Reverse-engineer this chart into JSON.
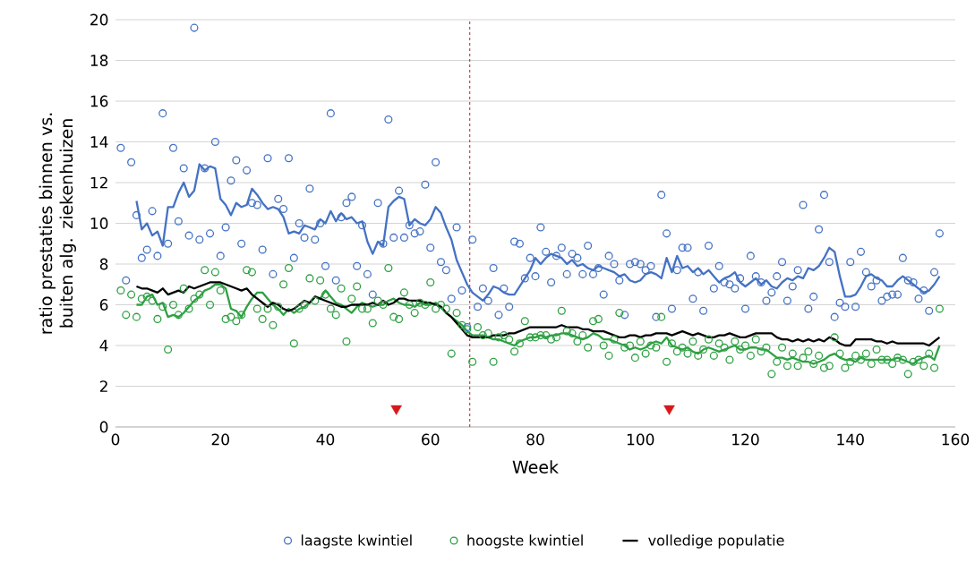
{
  "chart_data": {
    "type": "scatter",
    "xlabel": "Week",
    "ylabel": "ratio prestaties binnen vs. buiten alg. ziekenhuizen",
    "x": [
      1,
      2,
      3,
      4,
      5,
      6,
      7,
      8,
      9,
      10,
      11,
      12,
      13,
      14,
      15,
      16,
      17,
      18,
      19,
      20,
      21,
      22,
      23,
      24,
      25,
      26,
      27,
      28,
      29,
      30,
      31,
      32,
      33,
      34,
      35,
      36,
      37,
      38,
      39,
      40,
      41,
      42,
      43,
      44,
      45,
      46,
      47,
      48,
      49,
      50,
      51,
      52,
      53,
      54,
      55,
      56,
      57,
      58,
      59,
      60,
      61,
      62,
      63,
      64,
      65,
      66,
      67,
      68,
      69,
      70,
      71,
      72,
      73,
      74,
      75,
      76,
      77,
      78,
      79,
      80,
      81,
      82,
      83,
      84,
      85,
      86,
      87,
      88,
      89,
      90,
      91,
      92,
      93,
      94,
      95,
      96,
      97,
      98,
      99,
      100,
      101,
      102,
      103,
      104,
      105,
      106,
      107,
      108,
      109,
      110,
      111,
      112,
      113,
      114,
      115,
      116,
      117,
      118,
      119,
      120,
      121,
      122,
      123,
      124,
      125,
      126,
      127,
      128,
      129,
      130,
      131,
      132,
      133,
      134,
      135,
      136,
      137,
      138,
      139,
      140,
      141,
      142,
      143,
      144,
      145,
      146,
      147,
      148,
      149,
      150,
      151,
      152,
      153,
      154,
      155,
      156,
      157
    ],
    "xlim": [
      0,
      160
    ],
    "xticks": [
      0,
      20,
      40,
      60,
      80,
      100,
      120,
      140,
      160
    ],
    "ylim": [
      0,
      20
    ],
    "yticks": [
      0,
      2,
      4,
      6,
      8,
      10,
      12,
      14,
      16,
      18,
      20
    ],
    "grid": "y",
    "legend": "bottom",
    "ref_lines": [
      {
        "axis": "x",
        "value": 67.5,
        "color": "#c00000",
        "line_style": "dashed"
      }
    ],
    "series": [
      {
        "name": "laagste kwintiel",
        "marker": "circle",
        "color": "#4472c4",
        "values": [
          13.7,
          7.2,
          13.0,
          10.4,
          8.3,
          8.7,
          10.6,
          8.4,
          15.4,
          9.0,
          13.7,
          10.1,
          12.7,
          9.4,
          19.6,
          9.2,
          12.7,
          9.5,
          14.0,
          8.4,
          9.8,
          12.1,
          13.1,
          9.0,
          12.6,
          11.0,
          10.9,
          8.7,
          13.2,
          7.5,
          11.2,
          10.7,
          13.2,
          8.3,
          10.0,
          9.3,
          11.7,
          9.2,
          10.0,
          7.9,
          15.4,
          7.2,
          10.3,
          11.0,
          11.3,
          7.9,
          9.9,
          7.5,
          6.5,
          11.0,
          9.0,
          15.1,
          9.3,
          11.6,
          9.3,
          9.9,
          9.5,
          9.6,
          11.9,
          8.8,
          13.0,
          8.1,
          7.7,
          6.3,
          9.8,
          6.7,
          4.9,
          9.2,
          5.9,
          6.8,
          6.2,
          7.8,
          5.5,
          6.8,
          5.9,
          9.1,
          9.0,
          7.3,
          8.3,
          7.4,
          9.8,
          8.6,
          7.1,
          8.4,
          8.8,
          7.5,
          8.5,
          8.3,
          7.5,
          8.9,
          7.5,
          7.8,
          6.5,
          8.4,
          8.0,
          7.2,
          5.5,
          8.0,
          8.1,
          8.0,
          7.7,
          7.9,
          5.4,
          11.4,
          9.5,
          5.8,
          7.7,
          8.8,
          8.8,
          6.3,
          7.6,
          5.7,
          8.9,
          6.8,
          7.9,
          7.1,
          7.0,
          6.8,
          7.3,
          5.8,
          8.4,
          7.4,
          7.1,
          6.2,
          6.6,
          7.4,
          8.1,
          6.2,
          6.9,
          7.7,
          10.9,
          5.8,
          6.4,
          9.7,
          11.4,
          8.1,
          5.4,
          6.1,
          5.9,
          8.1,
          5.9,
          8.6,
          7.6,
          6.9,
          7.2,
          6.2,
          6.4,
          6.5,
          6.5,
          8.3,
          7.2,
          7.1,
          6.3,
          6.7,
          5.7,
          7.6,
          9.5
        ]
      },
      {
        "name": "hoogste kwintiel",
        "marker": "circle",
        "color": "#2ea043",
        "values": [
          6.7,
          5.5,
          6.5,
          5.4,
          6.3,
          6.4,
          6.2,
          5.3,
          5.9,
          3.8,
          6.0,
          5.5,
          6.8,
          5.8,
          6.3,
          6.5,
          7.7,
          6.0,
          7.6,
          6.7,
          5.3,
          5.4,
          5.2,
          5.5,
          7.7,
          7.6,
          5.8,
          5.3,
          5.8,
          5.0,
          5.9,
          7.0,
          7.8,
          4.1,
          5.8,
          6.0,
          7.3,
          6.2,
          7.2,
          6.5,
          5.8,
          5.5,
          6.8,
          4.2,
          6.3,
          6.9,
          5.8,
          5.8,
          5.1,
          6.2,
          6.0,
          7.8,
          5.4,
          5.3,
          6.6,
          6.0,
          5.6,
          6.1,
          6.0,
          7.1,
          5.8,
          6.0,
          5.8,
          3.6,
          5.6,
          5.0,
          4.8,
          3.2,
          4.9,
          4.5,
          4.6,
          3.2,
          4.4,
          4.5,
          4.3,
          3.7,
          4.1,
          5.2,
          4.4,
          4.4,
          4.5,
          4.5,
          4.3,
          4.4,
          5.7,
          4.7,
          4.6,
          4.2,
          4.5,
          3.9,
          5.2,
          5.3,
          4.0,
          3.5,
          4.3,
          5.6,
          3.9,
          4.0,
          3.4,
          4.2,
          3.6,
          4.0,
          3.9,
          5.4,
          3.2,
          4.1,
          3.7,
          3.9,
          3.6,
          4.2,
          3.5,
          3.8,
          4.3,
          3.5,
          4.1,
          3.9,
          3.3,
          4.2,
          3.8,
          4.0,
          3.5,
          4.3,
          3.7,
          3.9,
          2.6,
          3.2,
          3.9,
          3.0,
          3.6,
          3.0,
          3.4,
          3.7,
          3.1,
          3.5,
          2.9,
          3.0,
          4.4,
          3.6,
          2.9,
          3.2,
          3.5,
          3.3,
          3.6,
          3.1,
          3.8,
          3.3,
          3.3,
          3.1,
          3.4,
          3.3,
          2.6,
          3.2,
          3.3,
          3.0,
          3.6,
          2.9,
          5.8
        ]
      },
      {
        "type": "line",
        "color": "#4472c4",
        "values": [
          null,
          null,
          null,
          11.1,
          9.7,
          10.0,
          9.4,
          9.6,
          8.9,
          10.8,
          10.8,
          11.5,
          12.0,
          11.3,
          11.6,
          12.9,
          12.6,
          12.8,
          12.7,
          11.2,
          10.9,
          10.4,
          11.0,
          10.8,
          10.9,
          11.7,
          11.4,
          11.0,
          10.7,
          10.8,
          10.7,
          10.3,
          9.5,
          9.6,
          9.5,
          9.9,
          9.8,
          9.7,
          10.2,
          10.0,
          10.6,
          10.1,
          10.5,
          10.2,
          10.3,
          10.0,
          10.1,
          9.1,
          8.5,
          9.1,
          8.9,
          10.8,
          11.1,
          11.3,
          11.2,
          9.9,
          10.2,
          10.0,
          9.9,
          10.2,
          10.8,
          10.5,
          9.8,
          9.2,
          8.2,
          7.6,
          7.0,
          6.6,
          6.4,
          6.2,
          6.5,
          6.9,
          6.8,
          6.6,
          6.5,
          6.5,
          6.9,
          7.3,
          7.7,
          8.3,
          8.0,
          8.3,
          8.5,
          8.4,
          8.3,
          8.0,
          8.2,
          7.9,
          8.0,
          7.8,
          7.7,
          7.9,
          7.8,
          7.7,
          7.6,
          7.4,
          7.5,
          7.2,
          7.1,
          7.2,
          7.5,
          7.6,
          7.5,
          7.3,
          8.3,
          7.6,
          8.4,
          7.8,
          7.9,
          7.6,
          7.8,
          7.5,
          7.7,
          7.4,
          7.1,
          7.3,
          7.4,
          7.6,
          7.1,
          6.9,
          7.1,
          7.3,
          7.0,
          7.2,
          6.9,
          6.8,
          7.1,
          7.3,
          7.2,
          7.4,
          7.3,
          7.8,
          7.7,
          7.9,
          8.3,
          8.8,
          8.6,
          7.4,
          6.4,
          6.4,
          6.5,
          6.9,
          7.4,
          7.5,
          7.3,
          7.2,
          6.9,
          6.9,
          7.2,
          7.4,
          7.2,
          7.0,
          6.8,
          6.6,
          6.7,
          7.0,
          7.4
        ]
      },
      {
        "type": "line",
        "color": "#2ea043",
        "values": [
          null,
          null,
          null,
          6.0,
          6.0,
          6.4,
          6.5,
          6.0,
          6.1,
          5.4,
          5.5,
          5.4,
          5.6,
          5.9,
          6.2,
          6.4,
          6.7,
          6.8,
          7.0,
          7.0,
          6.8,
          5.8,
          5.7,
          5.4,
          5.9,
          6.3,
          6.6,
          6.6,
          6.3,
          6.0,
          5.8,
          5.5,
          5.8,
          5.6,
          5.8,
          5.9,
          6.1,
          6.4,
          6.3,
          6.7,
          6.4,
          6.1,
          6.0,
          5.8,
          5.6,
          5.9,
          6.1,
          6.0,
          5.9,
          6.0,
          6.0,
          6.2,
          6.3,
          6.1,
          6.0,
          6.0,
          5.9,
          6.1,
          6.0,
          6.0,
          6.1,
          5.9,
          5.6,
          5.4,
          5.2,
          5.0,
          4.7,
          4.5,
          4.5,
          4.5,
          4.4,
          4.3,
          4.3,
          4.2,
          4.1,
          4.0,
          4.2,
          4.3,
          4.4,
          4.4,
          4.5,
          4.4,
          4.5,
          4.5,
          4.6,
          4.6,
          4.5,
          4.4,
          4.3,
          4.4,
          4.6,
          4.5,
          4.3,
          4.3,
          4.2,
          4.1,
          4.0,
          3.8,
          3.9,
          3.8,
          3.9,
          4.1,
          4.2,
          4.1,
          4.4,
          4.0,
          3.9,
          3.8,
          3.9,
          3.7,
          3.6,
          3.8,
          3.9,
          3.8,
          3.7,
          3.8,
          3.9,
          4.0,
          3.8,
          3.8,
          3.9,
          3.9,
          3.8,
          3.8,
          3.6,
          3.4,
          3.4,
          3.3,
          3.4,
          3.3,
          3.2,
          3.2,
          3.1,
          3.2,
          3.3,
          3.5,
          3.6,
          3.4,
          3.3,
          3.3,
          3.2,
          3.4,
          3.3,
          3.3,
          3.3,
          3.3,
          3.3,
          3.3,
          3.4,
          3.3,
          3.2,
          3.1,
          3.3,
          3.4,
          3.5,
          3.3,
          4.0
        ]
      },
      {
        "name": "volledige populatie",
        "type": "line",
        "color": "#000000",
        "values": [
          null,
          null,
          null,
          6.9,
          6.8,
          6.8,
          6.7,
          6.6,
          6.8,
          6.5,
          6.6,
          6.7,
          6.6,
          6.9,
          6.8,
          6.9,
          7.0,
          7.1,
          7.1,
          7.1,
          7.0,
          6.9,
          6.8,
          6.7,
          6.8,
          6.5,
          6.3,
          6.1,
          5.9,
          6.1,
          6.0,
          5.8,
          5.7,
          5.8,
          6.0,
          6.2,
          6.1,
          6.4,
          6.3,
          6.2,
          6.1,
          6.0,
          5.9,
          5.9,
          6.0,
          6.0,
          6.0,
          6.0,
          6.1,
          6.0,
          6.2,
          6.0,
          6.1,
          6.3,
          6.3,
          6.2,
          6.2,
          6.2,
          6.1,
          6.1,
          6.0,
          5.9,
          5.6,
          5.4,
          5.1,
          4.8,
          4.5,
          4.4,
          4.4,
          4.4,
          4.4,
          4.5,
          4.5,
          4.5,
          4.6,
          4.6,
          4.7,
          4.8,
          4.9,
          4.9,
          4.9,
          4.9,
          4.9,
          4.9,
          5.0,
          4.9,
          4.9,
          4.9,
          4.8,
          4.8,
          4.7,
          4.7,
          4.7,
          4.6,
          4.5,
          4.4,
          4.4,
          4.5,
          4.5,
          4.4,
          4.5,
          4.5,
          4.6,
          4.6,
          4.6,
          4.5,
          4.6,
          4.7,
          4.6,
          4.5,
          4.6,
          4.5,
          4.4,
          4.4,
          4.5,
          4.5,
          4.6,
          4.5,
          4.4,
          4.4,
          4.5,
          4.6,
          4.6,
          4.6,
          4.6,
          4.4,
          4.3,
          4.3,
          4.2,
          4.3,
          4.2,
          4.3,
          4.2,
          4.3,
          4.2,
          4.4,
          4.3,
          4.1,
          4.0,
          4.0,
          4.3,
          4.3,
          4.3,
          4.3,
          4.2,
          4.2,
          4.1,
          4.2,
          4.1,
          4.1,
          4.1,
          4.1,
          4.1,
          4.1,
          4.0,
          4.2,
          4.4
        ]
      },
      {
        "marker": "triangle",
        "color": "#d7191c",
        "x": [
          53.5,
          105.5
        ],
        "values": [
          0.9,
          0.9
        ]
      }
    ]
  }
}
